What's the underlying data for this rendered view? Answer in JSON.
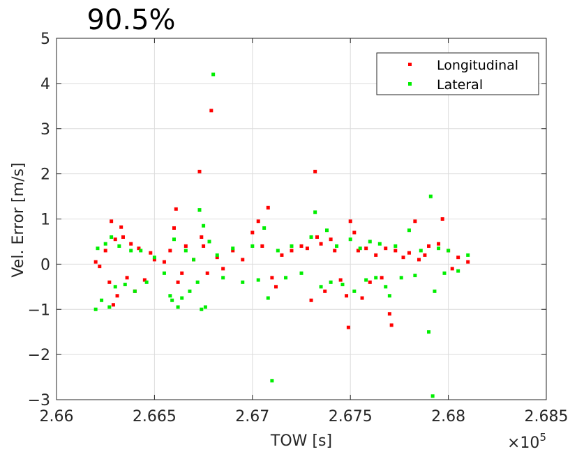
{
  "chart_data": {
    "type": "scatter",
    "title": "90.5%",
    "xlabel": "TOW [s]",
    "ylabel": "Vel. Error [m/s]",
    "x_multiplier_label": "×10",
    "x_multiplier_exponent": "5",
    "xlim": [
      2.66,
      2.685
    ],
    "ylim": [
      -3,
      5
    ],
    "xticks": [
      2.66,
      2.665,
      2.67,
      2.675,
      2.68,
      2.685
    ],
    "xtick_labels": [
      "2.66",
      "2.665",
      "2.67",
      "2.675",
      "2.68",
      "2.685"
    ],
    "yticks": [
      -3,
      -2,
      -1,
      0,
      1,
      2,
      3,
      4,
      5
    ],
    "ytick_labels": [
      "−3",
      "−2",
      "−1",
      "0",
      "1",
      "2",
      "3",
      "4",
      "5"
    ],
    "grid": true,
    "legend_position": "top-right",
    "series": [
      {
        "name": "Longitudinal",
        "color": "#ff0000",
        "points": [
          [
            2.662,
            0.05
          ],
          [
            2.6622,
            -0.05
          ],
          [
            2.6625,
            0.3
          ],
          [
            2.6627,
            -0.4
          ],
          [
            2.6628,
            0.95
          ],
          [
            2.6629,
            -0.9
          ],
          [
            2.663,
            0.55
          ],
          [
            2.6631,
            -0.7
          ],
          [
            2.6633,
            0.82
          ],
          [
            2.6634,
            0.6
          ],
          [
            2.6636,
            -0.3
          ],
          [
            2.6638,
            0.45
          ],
          [
            2.664,
            -0.6
          ],
          [
            2.6642,
            0.35
          ],
          [
            2.6645,
            -0.35
          ],
          [
            2.6648,
            0.25
          ],
          [
            2.665,
            0.1
          ],
          [
            2.6655,
            0.05
          ],
          [
            2.6658,
            0.3
          ],
          [
            2.666,
            0.8
          ],
          [
            2.6661,
            1.22
          ],
          [
            2.6662,
            -0.4
          ],
          [
            2.6664,
            -0.2
          ],
          [
            2.6666,
            0.4
          ],
          [
            2.667,
            0.1
          ],
          [
            2.6673,
            2.05
          ],
          [
            2.6674,
            0.6
          ],
          [
            2.6675,
            0.4
          ],
          [
            2.6677,
            -0.2
          ],
          [
            2.6679,
            3.4
          ],
          [
            2.6682,
            0.15
          ],
          [
            2.6685,
            -0.1
          ],
          [
            2.669,
            0.3
          ],
          [
            2.6695,
            0.1
          ],
          [
            2.67,
            0.7
          ],
          [
            2.6703,
            0.95
          ],
          [
            2.6705,
            0.4
          ],
          [
            2.6708,
            1.25
          ],
          [
            2.671,
            -0.3
          ],
          [
            2.6712,
            -0.5
          ],
          [
            2.6715,
            0.2
          ],
          [
            2.672,
            0.3
          ],
          [
            2.6725,
            0.4
          ],
          [
            2.6728,
            0.35
          ],
          [
            2.673,
            -0.8
          ],
          [
            2.6732,
            2.05
          ],
          [
            2.6733,
            0.6
          ],
          [
            2.6735,
            0.45
          ],
          [
            2.6737,
            -0.6
          ],
          [
            2.674,
            0.55
          ],
          [
            2.6742,
            0.3
          ],
          [
            2.6745,
            -0.35
          ],
          [
            2.6748,
            -0.7
          ],
          [
            2.6749,
            -1.4
          ],
          [
            2.675,
            0.95
          ],
          [
            2.6752,
            0.7
          ],
          [
            2.6754,
            0.3
          ],
          [
            2.6756,
            -0.75
          ],
          [
            2.6758,
            0.35
          ],
          [
            2.676,
            -0.4
          ],
          [
            2.6763,
            0.2
          ],
          [
            2.6766,
            -0.3
          ],
          [
            2.6768,
            0.35
          ],
          [
            2.677,
            -1.1
          ],
          [
            2.6771,
            -1.35
          ],
          [
            2.6773,
            0.3
          ],
          [
            2.6777,
            0.15
          ],
          [
            2.678,
            0.25
          ],
          [
            2.6783,
            0.95
          ],
          [
            2.6785,
            0.1
          ],
          [
            2.6788,
            0.2
          ],
          [
            2.679,
            0.4
          ],
          [
            2.6795,
            0.45
          ],
          [
            2.6797,
            1.0
          ],
          [
            2.68,
            0.3
          ],
          [
            2.6802,
            -0.1
          ],
          [
            2.6805,
            0.15
          ],
          [
            2.681,
            0.05
          ]
        ]
      },
      {
        "name": "Lateral",
        "color": "#00ee00",
        "points": [
          [
            2.662,
            -1.0
          ],
          [
            2.6621,
            0.35
          ],
          [
            2.6623,
            -0.8
          ],
          [
            2.6625,
            0.45
          ],
          [
            2.6627,
            -0.95
          ],
          [
            2.6628,
            0.6
          ],
          [
            2.663,
            -0.5
          ],
          [
            2.6632,
            0.4
          ],
          [
            2.6635,
            -0.45
          ],
          [
            2.6638,
            0.3
          ],
          [
            2.664,
            -0.6
          ],
          [
            2.6643,
            0.3
          ],
          [
            2.6646,
            -0.4
          ],
          [
            2.665,
            0.15
          ],
          [
            2.6655,
            -0.2
          ],
          [
            2.6658,
            -0.7
          ],
          [
            2.6659,
            -0.8
          ],
          [
            2.666,
            0.55
          ],
          [
            2.6662,
            -0.95
          ],
          [
            2.6664,
            -0.75
          ],
          [
            2.6666,
            0.3
          ],
          [
            2.6668,
            -0.6
          ],
          [
            2.667,
            0.1
          ],
          [
            2.6672,
            -0.4
          ],
          [
            2.6673,
            1.2
          ],
          [
            2.6674,
            -1.0
          ],
          [
            2.6675,
            0.85
          ],
          [
            2.6676,
            -0.95
          ],
          [
            2.6678,
            0.5
          ],
          [
            2.668,
            4.2
          ],
          [
            2.6682,
            0.2
          ],
          [
            2.6685,
            -0.3
          ],
          [
            2.669,
            0.35
          ],
          [
            2.6695,
            -0.4
          ],
          [
            2.67,
            0.4
          ],
          [
            2.6703,
            -0.35
          ],
          [
            2.6706,
            0.8
          ],
          [
            2.6708,
            -0.75
          ],
          [
            2.671,
            -2.58
          ],
          [
            2.6713,
            0.3
          ],
          [
            2.6717,
            -0.3
          ],
          [
            2.672,
            0.4
          ],
          [
            2.6725,
            -0.2
          ],
          [
            2.673,
            0.6
          ],
          [
            2.6732,
            1.15
          ],
          [
            2.6735,
            -0.5
          ],
          [
            2.6738,
            0.75
          ],
          [
            2.674,
            -0.4
          ],
          [
            2.6743,
            0.4
          ],
          [
            2.6746,
            -0.45
          ],
          [
            2.675,
            0.55
          ],
          [
            2.6752,
            -0.6
          ],
          [
            2.6755,
            0.35
          ],
          [
            2.6758,
            -0.35
          ],
          [
            2.676,
            0.5
          ],
          [
            2.6763,
            -0.3
          ],
          [
            2.6765,
            0.45
          ],
          [
            2.6768,
            -0.5
          ],
          [
            2.677,
            -0.7
          ],
          [
            2.6773,
            0.4
          ],
          [
            2.6776,
            -0.3
          ],
          [
            2.678,
            0.75
          ],
          [
            2.6783,
            -0.25
          ],
          [
            2.6786,
            0.3
          ],
          [
            2.679,
            -1.5
          ],
          [
            2.6791,
            1.5
          ],
          [
            2.6792,
            -2.92
          ],
          [
            2.6793,
            -0.6
          ],
          [
            2.6795,
            0.35
          ],
          [
            2.6798,
            -0.2
          ],
          [
            2.68,
            0.3
          ],
          [
            2.6805,
            -0.15
          ],
          [
            2.681,
            0.2
          ]
        ]
      }
    ]
  }
}
